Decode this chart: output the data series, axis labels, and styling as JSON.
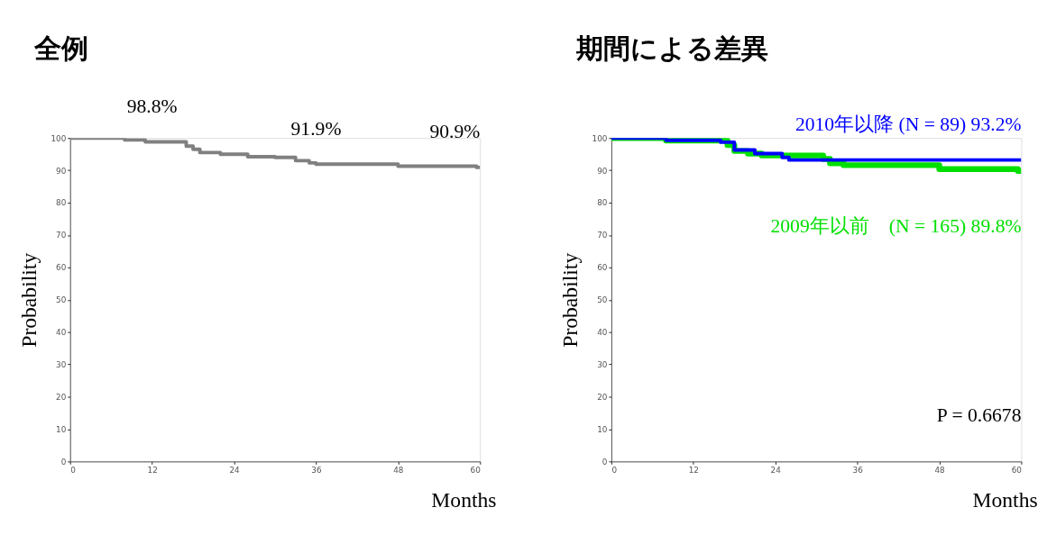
{
  "chart_data": [
    {
      "type": "step",
      "title": "全例",
      "xlabel": "Months",
      "ylabel": "Probability",
      "xlim": [
        0,
        60
      ],
      "xticks": [
        0,
        12,
        24,
        36,
        48,
        60
      ],
      "ylim": [
        0,
        100
      ],
      "yticks": [
        0,
        10,
        20,
        30,
        40,
        50,
        60,
        70,
        80,
        90,
        100
      ],
      "grid": false,
      "legend": false,
      "marker": "none",
      "line_style": "solid",
      "series": [
        {
          "color": "#808080",
          "x": [
            0,
            8,
            11,
            17,
            18,
            19,
            22,
            26,
            30,
            33,
            35,
            36,
            48,
            59.5,
            60
          ],
          "values": [
            100,
            99.4,
            98.8,
            97.5,
            96.5,
            95.5,
            95,
            94.2,
            94,
            93,
            92.3,
            91.9,
            91.3,
            90.9,
            90.9
          ]
        }
      ],
      "annotations": [
        {
          "text": "98.8%",
          "x": 12,
          "y": 98.8
        },
        {
          "text": "91.9%",
          "x": 36,
          "y": 91.9
        },
        {
          "text": "90.9%",
          "x": 60,
          "y": 90.9
        }
      ]
    },
    {
      "type": "step",
      "title": "期間による差異",
      "xlabel": "Months",
      "ylabel": "Probability",
      "xlim": [
        0,
        60
      ],
      "xticks": [
        0,
        12,
        24,
        36,
        48,
        60
      ],
      "ylim": [
        0,
        100
      ],
      "yticks": [
        0,
        10,
        20,
        30,
        40,
        50,
        60,
        70,
        80,
        90,
        100
      ],
      "grid": false,
      "legend": false,
      "marker": "none",
      "line_style": "solid",
      "series": [
        {
          "name": "2009年以前　(N = 165) 89.8%",
          "color": "#00e000",
          "x": [
            0,
            8,
            17,
            18,
            20,
            22,
            31,
            32,
            34,
            48,
            59.5,
            60
          ],
          "values": [
            100,
            99.2,
            97.8,
            96,
            95.2,
            94.6,
            93.5,
            92.2,
            91.6,
            90.4,
            89.8,
            89.8
          ]
        },
        {
          "name": "2010年以降 (N = 89) 93.2%",
          "color": "#0000ff",
          "x": [
            0,
            8,
            16,
            18,
            21,
            25,
            26,
            60
          ],
          "values": [
            100,
            99.3,
            98.7,
            96.3,
            95.2,
            94,
            93.2,
            93.2
          ]
        }
      ],
      "annotations": [
        "P = 0.6678"
      ]
    }
  ]
}
